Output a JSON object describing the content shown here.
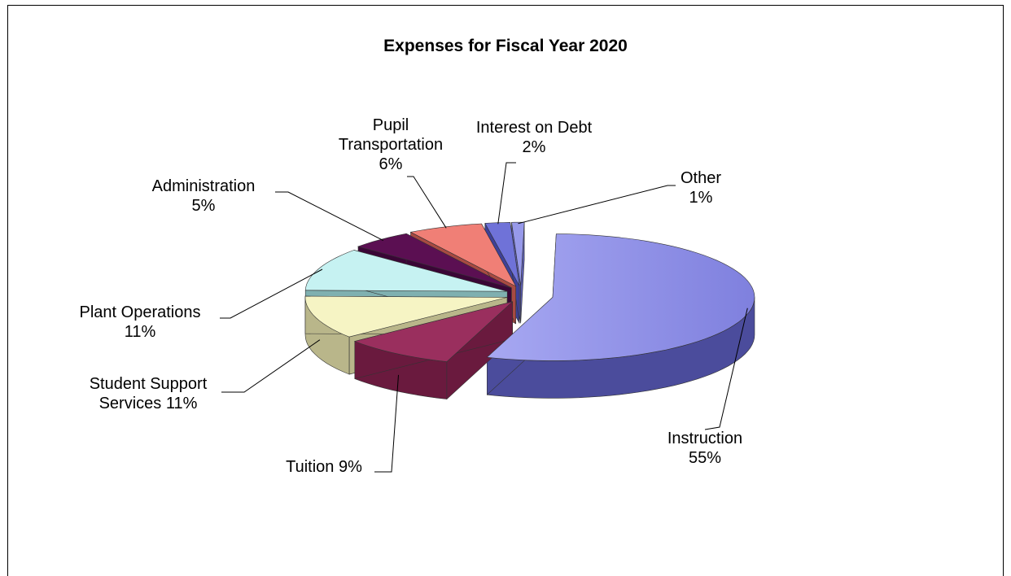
{
  "chart_data": {
    "type": "pie",
    "title": "Expenses for Fiscal Year 2020",
    "slices": [
      {
        "name": "Instruction",
        "label_lines": [
          "Instruction",
          "55%"
        ],
        "value": 55,
        "color": "#8f90e8",
        "side_color": "#4b4c9c"
      },
      {
        "name": "Tuition",
        "label_lines": [
          "Tuition 9%"
        ],
        "value": 9,
        "color": "#9a2f5e",
        "side_color": "#6a1a3e"
      },
      {
        "name": "Student Support Services",
        "label_lines": [
          "Student Support",
          "Services 11%"
        ],
        "value": 11,
        "color": "#f6f4c4",
        "side_color": "#b9b68a"
      },
      {
        "name": "Plant Operations",
        "label_lines": [
          "Plant Operations",
          "11%"
        ],
        "value": 11,
        "color": "#c6f2f2",
        "side_color": "#7fb0b0"
      },
      {
        "name": "Administration",
        "label_lines": [
          "Administration",
          "5%"
        ],
        "value": 5,
        "color": "#5b0f52",
        "side_color": "#3a0636"
      },
      {
        "name": "Pupil Transportation",
        "label_lines": [
          "Pupil",
          "Transportation",
          "6%"
        ],
        "value": 6,
        "color": "#f07f76",
        "side_color": "#a84a42"
      },
      {
        "name": "Interest on Debt",
        "label_lines": [
          "Interest on Debt",
          "2%"
        ],
        "value": 2,
        "color": "#6f72d8",
        "side_color": "#3e4098"
      },
      {
        "name": "Other",
        "label_lines": [
          "Other",
          "1%"
        ],
        "value": 1,
        "color": "#9799ea",
        "side_color": "#5c5eb0"
      }
    ],
    "legend": "none",
    "style": "3d-exploded"
  }
}
